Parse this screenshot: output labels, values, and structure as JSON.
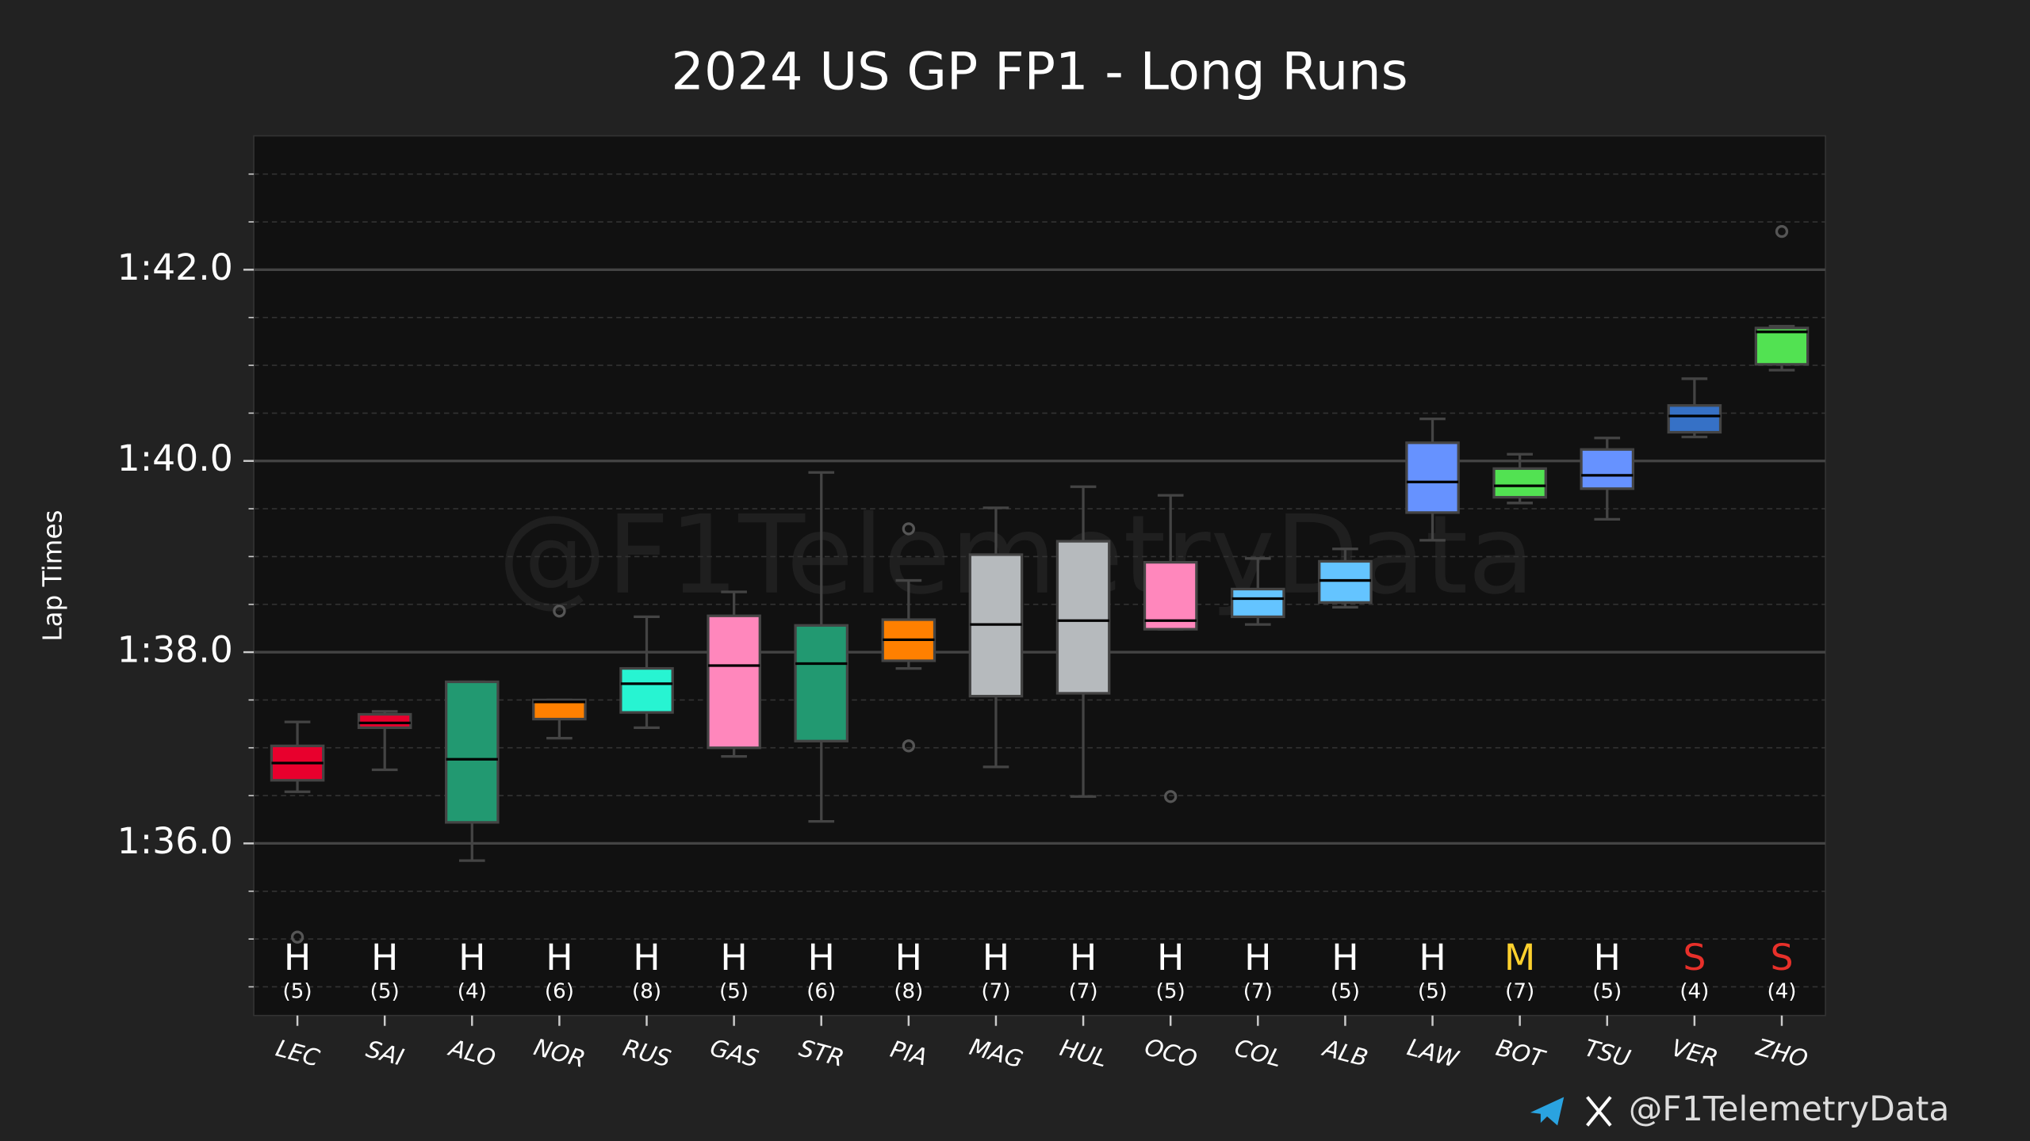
{
  "chart_data": {
    "type": "box",
    "title": "2024 US GP FP1 - Long Runs",
    "ylabel": "Lap Times",
    "watermark": "@F1TelemetryData",
    "footer": "@F1TelemetryData",
    "ylim": [
      94.2,
      103.4
    ],
    "yticks": [
      {
        "value": 96,
        "label": "1:36.0"
      },
      {
        "value": 98,
        "label": "1:38.0"
      },
      {
        "value": 100,
        "label": "1:40.0"
      },
      {
        "value": 102,
        "label": "1:42.0"
      }
    ],
    "yminor_ticks": [
      94.5,
      95,
      95.5,
      96.5,
      97,
      97.5,
      98.5,
      99,
      99.5,
      100.5,
      101,
      101.5,
      102.5,
      103
    ],
    "grid": true,
    "compound_colors": {
      "H": "#ffffff",
      "M": "#ffd12e",
      "S": "#e8302a"
    },
    "categories": [
      "LEC",
      "SAI",
      "ALO",
      "NOR",
      "RUS",
      "GAS",
      "STR",
      "PIA",
      "MAG",
      "HUL",
      "OCO",
      "COL",
      "ALB",
      "LAW",
      "BOT",
      "TSU",
      "VER",
      "ZHO"
    ],
    "boxes": [
      {
        "color": "#e8002d",
        "low": 96.54,
        "q1": 96.66,
        "median": 96.84,
        "q3": 97.02,
        "high": 97.27,
        "outliers": [
          95.02
        ],
        "compound": "H",
        "laps": "(5)"
      },
      {
        "color": "#e8002d",
        "low": 96.77,
        "q1": 97.21,
        "median": 97.26,
        "q3": 97.35,
        "high": 97.38,
        "outliers": [],
        "compound": "H",
        "laps": "(5)"
      },
      {
        "color": "#229971",
        "low": 95.82,
        "q1": 96.22,
        "median": 96.88,
        "q3": 97.69,
        "high": 97.69,
        "outliers": [],
        "compound": "H",
        "laps": "(4)"
      },
      {
        "color": "#ff8000",
        "low": 97.1,
        "q1": 97.3,
        "median": 97.48,
        "q3": 97.5,
        "high": 97.5,
        "outliers": [
          98.43
        ],
        "compound": "H",
        "laps": "(6)"
      },
      {
        "color": "#27f4d2",
        "low": 97.21,
        "q1": 97.37,
        "median": 97.67,
        "q3": 97.83,
        "high": 98.37,
        "outliers": [],
        "compound": "H",
        "laps": "(8)"
      },
      {
        "color": "#ff87bc",
        "low": 96.91,
        "q1": 97.0,
        "median": 97.86,
        "q3": 98.38,
        "high": 98.63,
        "outliers": [],
        "compound": "H",
        "laps": "(5)"
      },
      {
        "color": "#229971",
        "low": 96.23,
        "q1": 97.07,
        "median": 97.88,
        "q3": 98.28,
        "high": 99.88,
        "outliers": [],
        "compound": "H",
        "laps": "(6)"
      },
      {
        "color": "#ff8000",
        "low": 97.83,
        "q1": 97.91,
        "median": 98.13,
        "q3": 98.34,
        "high": 98.75,
        "outliers": [
          99.29,
          97.02
        ],
        "compound": "H",
        "laps": "(8)"
      },
      {
        "color": "#b6babd",
        "low": 96.8,
        "q1": 97.54,
        "median": 98.29,
        "q3": 99.02,
        "high": 99.51,
        "outliers": [],
        "compound": "H",
        "laps": "(7)"
      },
      {
        "color": "#b6babd",
        "low": 96.49,
        "q1": 97.57,
        "median": 98.33,
        "q3": 99.16,
        "high": 99.73,
        "outliers": [],
        "compound": "H",
        "laps": "(7)"
      },
      {
        "color": "#ff87bc",
        "low": 98.24,
        "q1": 98.24,
        "median": 98.33,
        "q3": 98.94,
        "high": 99.64,
        "outliers": [
          96.49
        ],
        "compound": "H",
        "laps": "(5)"
      },
      {
        "color": "#64c4ff",
        "low": 98.29,
        "q1": 98.37,
        "median": 98.56,
        "q3": 98.66,
        "high": 98.98,
        "outliers": [],
        "compound": "H",
        "laps": "(7)"
      },
      {
        "color": "#64c4ff",
        "low": 98.47,
        "q1": 98.52,
        "median": 98.75,
        "q3": 98.95,
        "high": 99.08,
        "outliers": [],
        "compound": "H",
        "laps": "(5)"
      },
      {
        "color": "#6692ff",
        "low": 99.17,
        "q1": 99.46,
        "median": 99.78,
        "q3": 100.19,
        "high": 100.44,
        "outliers": [],
        "compound": "H",
        "laps": "(5)"
      },
      {
        "color": "#52e252",
        "low": 99.56,
        "q1": 99.62,
        "median": 99.74,
        "q3": 99.92,
        "high": 100.07,
        "outliers": [],
        "compound": "M",
        "laps": "(7)"
      },
      {
        "color": "#6692ff",
        "low": 99.39,
        "q1": 99.71,
        "median": 99.85,
        "q3": 100.12,
        "high": 100.24,
        "outliers": [],
        "compound": "H",
        "laps": "(5)"
      },
      {
        "color": "#3671c6",
        "low": 100.25,
        "q1": 100.3,
        "median": 100.47,
        "q3": 100.58,
        "high": 100.86,
        "outliers": [],
        "compound": "S",
        "laps": "(4)"
      },
      {
        "color": "#52e252",
        "low": 100.95,
        "q1": 101.01,
        "median": 101.35,
        "q3": 101.39,
        "high": 101.41,
        "outliers": [
          102.4
        ],
        "compound": "S",
        "laps": "(4)"
      }
    ]
  }
}
